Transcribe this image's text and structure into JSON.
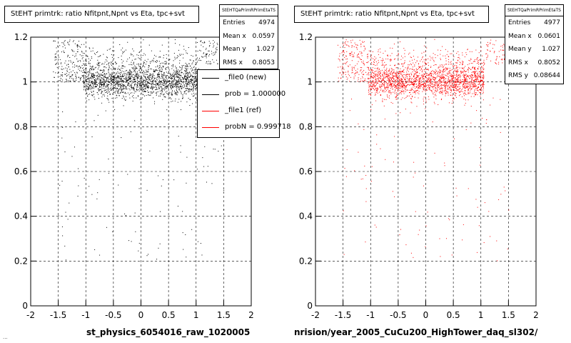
{
  "chart_data": [
    {
      "type": "scatter",
      "title": "StEHT primtrk: ratio Nfitpnt,Npnt vs Eta, tpc+svt",
      "xlabel": "",
      "ylabel": "",
      "xlim": [
        -2,
        2
      ],
      "ylim": [
        0,
        1.2
      ],
      "x_ticks": [
        "-2",
        "-1.5",
        "-1",
        "-0.5",
        "0",
        "0.5",
        "1",
        "1.5",
        "2"
      ],
      "y_ticks": [
        "0",
        "0.2",
        "0.4",
        "0.6",
        "0.8",
        "1",
        "1.2"
      ],
      "grid": true,
      "series": [
        {
          "name": "_file0 (new)",
          "color": "#000000",
          "entries": 4974,
          "mean_x": 0.0597,
          "mean_y": 1.027,
          "rms_x": 0.8053
        }
      ],
      "stats": {
        "name": "StEHTQaPrimRPrimEtaTS",
        "rows": [
          {
            "label": "Entries",
            "value": "4974"
          },
          {
            "label": "Mean x",
            "value": "0.0597"
          },
          {
            "label": "Mean y",
            "value": "1.027"
          },
          {
            "label": "RMS x",
            "value": "0.8053"
          }
        ]
      },
      "legend": {
        "placement": "top-right",
        "entries": [
          {
            "label": "_file0 (new)",
            "color": "#000000"
          },
          {
            "label": "prob = 1.000000",
            "color": "#000000"
          },
          {
            "label": "_file1 (ref)",
            "color": "#ff0000"
          },
          {
            "label": "probN = 0.999718",
            "color": "#ff0000"
          }
        ]
      },
      "footer": "st_physics_6054016_raw_1020005",
      "footer_small": "..."
    },
    {
      "type": "scatter",
      "title": "StEHT primtrk: ratio Nfitpnt,Npnt vs Eta, tpc+svt",
      "xlabel": "",
      "ylabel": "",
      "xlim": [
        -2,
        2
      ],
      "ylim": [
        0,
        1.2
      ],
      "x_ticks": [
        "-2",
        "-1.5",
        "-1",
        "-0.5",
        "0",
        "0.5",
        "1",
        "1.5",
        "2"
      ],
      "y_ticks": [
        "0",
        "0.2",
        "0.4",
        "0.6",
        "0.8",
        "1",
        "1.2"
      ],
      "grid": true,
      "series": [
        {
          "name": "_file1 (ref)",
          "color": "#ff0000",
          "entries": 4977,
          "mean_x": 0.0601,
          "mean_y": 1.027,
          "rms_x": 0.8052,
          "rms_y": 0.08644
        }
      ],
      "stats": {
        "name": "StEHTQaPrimRPrimEtaTS",
        "rows": [
          {
            "label": "Entries",
            "value": "4977"
          },
          {
            "label": "Mean x",
            "value": "0.0601"
          },
          {
            "label": "Mean y",
            "value": "1.027"
          },
          {
            "label": "RMS x",
            "value": "0.8052"
          },
          {
            "label": "RMS y",
            "value": "0.08644"
          }
        ]
      },
      "footer": "nrision/year_2005_CuCu200_HighTower_daq_sl302/"
    }
  ]
}
